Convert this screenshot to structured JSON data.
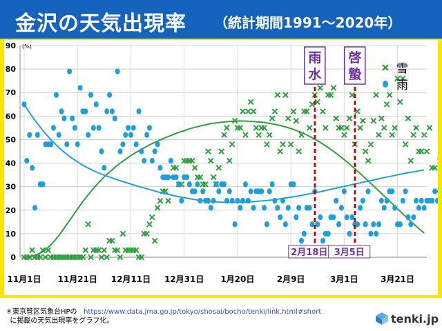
{
  "header": {
    "title": "金沢の天気出現率",
    "subtitle": "（統計期間1991～2020年）"
  },
  "footer": {
    "note_prefix": "＊東京管区気象台HPの",
    "url": "https://www.data.jma.go.jp/tokyo/shosai/bocho/tenki/link.html#short",
    "note_suffix": "に掲載の天気出現率をグラフ化。",
    "logo_text": "tenki.jp"
  },
  "colors": {
    "snow": "#2e9e3e",
    "rain": "#1f9fd8",
    "marker_line": "#c00000",
    "label_purple": "#7030a0",
    "title_bg": "#1563bd",
    "frame": "#ffe600"
  },
  "chart_data": {
    "type": "scatter",
    "ylim": [
      0,
      90
    ],
    "yticks": [
      0,
      10,
      20,
      30,
      40,
      50,
      60,
      70,
      80,
      90
    ],
    "yunit": "(%)",
    "xlim": [
      "11月1日",
      "4月1日"
    ],
    "xticks": [
      {
        "day": 0,
        "label": "11月1日"
      },
      {
        "day": 20,
        "label": "11月21日"
      },
      {
        "day": 40,
        "label": "12月11日"
      },
      {
        "day": 60,
        "label": "12月31日"
      },
      {
        "day": 80,
        "label": "1月20日"
      },
      {
        "day": 100,
        "label": "2月9日"
      },
      {
        "day": 120,
        "label": "3月1日"
      },
      {
        "day": 140,
        "label": "3月21日"
      }
    ],
    "legend": {
      "position": "top-right",
      "entries": [
        "雪",
        "雨"
      ]
    },
    "markers": [
      {
        "day": 109,
        "name": "雨水",
        "date": "2月18日"
      },
      {
        "day": 124,
        "name": "啓蟄",
        "date": "3月5日"
      }
    ],
    "series": [
      {
        "name": "雪",
        "marker": "x",
        "values": [
          0,
          0,
          0,
          3,
          0,
          0,
          0,
          3,
          0,
          3,
          0,
          0,
          0,
          0,
          0,
          0,
          0,
          0,
          0,
          0,
          0,
          0,
          0,
          3,
          14,
          0,
          3,
          3,
          3,
          0,
          3,
          0,
          7,
          7,
          3,
          3,
          0,
          10,
          3,
          3,
          3,
          3,
          3,
          0,
          0,
          10,
          10,
          14,
          17,
          7,
          21,
          24,
          28,
          28,
          24,
          34,
          38,
          38,
          31,
          31,
          41,
          41,
          41,
          41,
          38,
          34,
          34,
          31,
          31,
          45,
          41,
          34,
          31,
          38,
          45,
          52,
          55,
          41,
          48,
          58,
          55,
          55,
          62,
          52,
          62,
          66,
          62,
          55,
          52,
          55,
          55,
          48,
          52,
          59,
          62,
          69,
          45,
          48,
          69,
          59,
          48,
          62,
          58,
          45,
          52,
          62,
          62,
          55,
          65,
          69,
          66,
          72,
          62,
          55,
          69,
          69,
          72,
          59,
          55,
          55,
          52,
          55,
          59,
          69,
          48,
          62,
          55,
          58,
          45,
          41,
          48,
          58,
          69,
          52,
          59,
          55,
          65,
          69,
          52,
          55,
          76,
          66,
          76,
          48,
          59,
          41,
          52,
          55,
          45,
          45,
          52,
          45,
          55,
          38,
          38,
          28,
          41,
          38,
          52,
          17,
          45,
          28,
          31,
          28,
          38,
          48,
          38,
          34,
          28,
          41,
          31,
          45,
          38,
          48,
          41,
          45,
          41,
          31,
          34,
          17,
          24,
          14,
          28,
          17,
          31,
          14,
          10,
          24,
          10,
          21,
          14,
          10,
          10,
          17,
          10,
          10
        ],
        "fit": [
          0.0,
          0.3,
          0.8,
          1.7,
          3.2,
          5.2,
          7.8,
          10.7,
          14.0,
          17.2,
          20.5,
          23.6,
          26.6,
          29.3,
          31.8,
          34.1,
          36.2,
          38.2,
          40.0,
          41.6,
          43.2,
          44.6,
          45.9,
          47.1,
          48.3,
          49.3,
          50.4,
          51.3,
          52.2,
          53.1,
          53.8,
          54.6,
          55.2,
          55.8,
          56.3,
          56.8,
          57.1,
          57.4,
          57.6,
          57.8,
          57.9,
          57.9,
          57.8,
          57.7,
          57.5,
          57.3,
          56.9,
          56.5,
          56.0,
          55.4,
          54.7,
          53.9,
          53.0,
          52.0,
          50.8,
          49.5,
          48.1,
          46.6,
          45.0,
          43.3,
          41.5,
          39.6,
          37.6,
          35.6,
          33.5,
          31.4,
          29.3,
          27.1,
          25.0,
          22.8,
          20.6,
          18.4,
          16.3,
          14.2,
          12.2,
          10.3
        ]
      },
      {
        "name": "雨",
        "marker": "circle",
        "values": [
          65,
          41,
          52,
          38,
          21,
          52,
          31,
          31,
          48,
          48,
          48,
          55,
          69,
          52,
          62,
          59,
          48,
          79,
          59,
          55,
          48,
          72,
          62,
          62,
          52,
          69,
          55,
          65,
          55,
          45,
          38,
          62,
          69,
          62,
          59,
          79,
          45,
          48,
          52,
          55,
          52,
          55,
          48,
          62,
          45,
          41,
          52,
          55,
          41,
          45,
          48,
          38,
          34,
          34,
          34,
          41,
          34,
          34,
          31,
          24,
          34,
          34,
          31,
          28,
          28,
          31,
          24,
          28,
          24,
          24,
          21,
          24,
          31,
          28,
          31,
          31,
          24,
          28,
          24,
          14,
          24,
          21,
          24,
          31,
          24,
          28,
          21,
          28,
          28,
          28,
          21,
          14,
          28,
          31,
          24,
          21,
          17,
          24,
          14,
          21,
          31,
          31,
          17,
          21,
          7,
          10,
          21,
          21,
          14,
          28,
          14,
          17,
          7,
          10,
          10,
          17,
          17,
          24,
          14,
          21,
          28,
          17,
          10,
          17,
          14,
          14,
          21,
          24,
          14,
          28,
          10,
          14,
          10,
          14,
          24,
          21,
          24,
          28,
          28,
          21,
          14,
          14,
          24,
          28,
          17,
          14,
          17,
          24,
          21,
          24,
          21,
          24,
          24,
          24,
          28,
          24,
          24,
          28,
          24,
          34,
          31,
          24,
          38,
          28,
          34,
          28,
          34,
          34,
          38,
          34,
          31,
          41,
          31,
          48,
          38,
          45,
          41,
          38,
          34,
          38,
          38,
          45,
          31,
          41,
          28,
          38,
          38,
          38,
          41,
          31,
          38
        ],
        "fit": [
          65.0,
          61.5,
          58.3,
          55.3,
          52.5,
          50.0,
          47.7,
          45.6,
          43.7,
          42.0,
          40.5,
          39.1,
          37.9,
          36.8,
          35.8,
          34.9,
          34.1,
          33.3,
          32.5,
          31.8,
          31.1,
          30.4,
          29.7,
          29.1,
          28.5,
          27.8,
          27.3,
          26.7,
          26.2,
          25.7,
          25.3,
          24.9,
          24.5,
          24.2,
          23.9,
          23.7,
          23.5,
          23.4,
          23.3,
          23.3,
          23.3,
          23.4,
          23.5,
          23.6,
          23.8,
          24.0,
          24.2,
          24.5,
          24.8,
          25.2,
          25.5,
          25.9,
          26.3,
          26.7,
          27.2,
          27.6,
          28.1,
          28.6,
          29.1,
          29.6,
          30.1,
          30.6,
          31.1,
          31.6,
          32.1,
          32.6,
          33.1,
          33.6,
          34.1,
          34.5,
          35.0,
          35.5,
          35.9,
          36.3,
          36.7,
          37.1
        ]
      }
    ]
  }
}
